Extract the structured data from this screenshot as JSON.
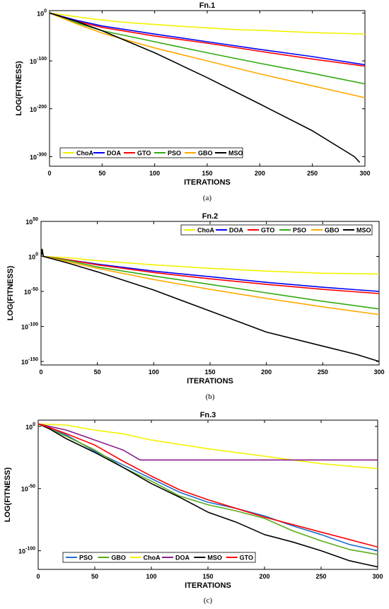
{
  "chart_data": [
    {
      "type": "line",
      "title": "Fn.1",
      "xlabel": "ITERATIONS",
      "ylabel": "LOG(FITNESS)",
      "caption": "(a)",
      "xlim": [
        0,
        300
      ],
      "ylim": [
        -320,
        5
      ],
      "y_scale": "log10",
      "xticks": [
        0,
        50,
        100,
        150,
        200,
        250,
        300
      ],
      "yticks": [
        {
          "value": 0,
          "base": "10",
          "exp": "0"
        },
        {
          "value": -100,
          "base": "10",
          "exp": "-100"
        },
        {
          "value": -200,
          "base": "10",
          "exp": "-200"
        },
        {
          "value": -300,
          "base": "10",
          "exp": "-300"
        }
      ],
      "legend_position": "bottom-left",
      "legend_order": [
        "ChoA",
        "DOA",
        "GTO",
        "PSO",
        "GBO",
        "MSO"
      ],
      "series": [
        {
          "name": "ChoA",
          "color": "#f2f200",
          "x": [
            0,
            10,
            20,
            30,
            40,
            60,
            80,
            100,
            120,
            150,
            180,
            200,
            250,
            300
          ],
          "y": [
            0,
            -3,
            -6,
            -9,
            -12,
            -17,
            -21,
            -24,
            -27,
            -31,
            -35,
            -36,
            -41,
            -44
          ]
        },
        {
          "name": "DOA",
          "color": "#0000ff",
          "x": [
            0,
            25,
            50,
            100,
            150,
            200,
            250,
            300
          ],
          "y": [
            0,
            -15,
            -27,
            -44,
            -60,
            -76,
            -91,
            -108
          ]
        },
        {
          "name": "GTO",
          "color": "#ff0000",
          "x": [
            0,
            25,
            50,
            100,
            150,
            200,
            250,
            300
          ],
          "y": [
            0,
            -17,
            -30,
            -48,
            -63,
            -80,
            -96,
            -111
          ]
        },
        {
          "name": "PSO",
          "color": "#33aa11",
          "x": [
            0,
            25,
            50,
            100,
            150,
            200,
            250,
            300
          ],
          "y": [
            0,
            -20,
            -37,
            -60,
            -83,
            -105,
            -126,
            -148
          ]
        },
        {
          "name": "GBO",
          "color": "#ffaa00",
          "x": [
            0,
            25,
            50,
            100,
            150,
            200,
            250,
            300
          ],
          "y": [
            0,
            -22,
            -42,
            -73,
            -100,
            -127,
            -152,
            -177
          ]
        },
        {
          "name": "MSO",
          "color": "#000000",
          "x": [
            0,
            25,
            50,
            100,
            150,
            200,
            250,
            290,
            295
          ],
          "y": [
            0,
            -17,
            -37,
            -83,
            -135,
            -190,
            -246,
            -300,
            -312
          ]
        }
      ]
    },
    {
      "type": "line",
      "title": "Fn.2",
      "xlabel": "ITERATIONS",
      "ylabel": "LOG(FITNESS)",
      "caption": "(b)",
      "xlim": [
        0,
        300
      ],
      "ylim": [
        -155,
        50
      ],
      "y_scale": "log10",
      "xticks": [
        0,
        50,
        100,
        150,
        200,
        250,
        300
      ],
      "yticks": [
        {
          "value": 50,
          "base": "10",
          "exp": "50"
        },
        {
          "value": 0,
          "base": "10",
          "exp": "0"
        },
        {
          "value": -50,
          "base": "10",
          "exp": "-50"
        },
        {
          "value": -100,
          "base": "10",
          "exp": "-100"
        },
        {
          "value": -150,
          "base": "10",
          "exp": "-150"
        }
      ],
      "legend_position": "top-right",
      "legend_order": [
        "ChoA",
        "DOA",
        "GTO",
        "PSO",
        "GBO",
        "MSO"
      ],
      "series": [
        {
          "name": "ChoA",
          "color": "#f2f200",
          "x": [
            0,
            1,
            2,
            25,
            50,
            100,
            150,
            200,
            250,
            300
          ],
          "y": [
            0,
            10,
            0,
            -2,
            -6,
            -12,
            -17,
            -21,
            -24,
            -25
          ]
        },
        {
          "name": "DOA",
          "color": "#0000ff",
          "x": [
            0,
            1,
            2,
            25,
            50,
            100,
            150,
            200,
            250,
            300
          ],
          "y": [
            0,
            10,
            0,
            -5,
            -11,
            -21,
            -29,
            -37,
            -44,
            -50
          ]
        },
        {
          "name": "GTO",
          "color": "#ff0000",
          "x": [
            0,
            1,
            2,
            25,
            50,
            100,
            150,
            200,
            250,
            300
          ],
          "y": [
            0,
            10,
            0,
            -5,
            -12,
            -23,
            -32,
            -40,
            -47,
            -53
          ]
        },
        {
          "name": "PSO",
          "color": "#33aa11",
          "x": [
            0,
            1,
            2,
            25,
            50,
            100,
            150,
            200,
            250,
            300
          ],
          "y": [
            0,
            10,
            0,
            -6,
            -15,
            -28,
            -40,
            -52,
            -64,
            -75
          ]
        },
        {
          "name": "GBO",
          "color": "#ffaa00",
          "x": [
            0,
            1,
            2,
            25,
            50,
            100,
            150,
            200,
            250,
            300
          ],
          "y": [
            0,
            10,
            0,
            -8,
            -17,
            -33,
            -47,
            -60,
            -72,
            -83
          ]
        },
        {
          "name": "MSO",
          "color": "#000000",
          "x": [
            0,
            1,
            2,
            25,
            50,
            100,
            150,
            200,
            250,
            280,
            300
          ],
          "y": [
            0,
            10,
            0,
            -10,
            -22,
            -48,
            -78,
            -108,
            -128,
            -140,
            -150
          ]
        }
      ]
    },
    {
      "type": "line",
      "title": "Fn.3",
      "xlabel": "ITERATIONS",
      "ylabel": "LOG(FITNESS)",
      "caption": "(c)",
      "xlim": [
        0,
        300
      ],
      "ylim": [
        -115,
        5
      ],
      "y_scale": "log10",
      "xticks": [
        0,
        50,
        100,
        150,
        200,
        250,
        300
      ],
      "yticks": [
        {
          "value": 0,
          "base": "10",
          "exp": "0"
        },
        {
          "value": -50,
          "base": "10",
          "exp": "-50"
        },
        {
          "value": -100,
          "base": "10",
          "exp": "-100"
        }
      ],
      "legend_position": "bottom-left",
      "legend_order": [
        "PSO",
        "GBO",
        "ChoA",
        "DOA",
        "MSO",
        "GTO"
      ],
      "series": [
        {
          "name": "PSO",
          "color": "#1e6fd0",
          "x": [
            0,
            10,
            25,
            50,
            75,
            100,
            125,
            150,
            175,
            200,
            225,
            250,
            275,
            300
          ],
          "y": [
            2,
            -1,
            -7,
            -20,
            -31,
            -42,
            -53,
            -61,
            -66,
            -72,
            -80,
            -87,
            -95,
            -100
          ]
        },
        {
          "name": "GBO",
          "color": "#5aaa1a",
          "x": [
            0,
            10,
            25,
            50,
            75,
            100,
            125,
            150,
            175,
            200,
            225,
            250,
            275,
            300
          ],
          "y": [
            2,
            -2,
            -8,
            -19,
            -33,
            -44,
            -56,
            -63,
            -68,
            -74,
            -84,
            -92,
            -99,
            -103
          ]
        },
        {
          "name": "ChoA",
          "color": "#f2f200",
          "x": [
            0,
            25,
            50,
            75,
            100,
            150,
            175,
            200,
            225,
            250,
            275,
            300
          ],
          "y": [
            2,
            1,
            -3,
            -6,
            -11,
            -18,
            -21,
            -24,
            -27,
            -30,
            -32,
            -34
          ]
        },
        {
          "name": "DOA",
          "color": "#8a1f8a",
          "x": [
            0,
            25,
            50,
            75,
            90,
            300
          ],
          "y": [
            2,
            -3,
            -11,
            -19,
            -27,
            -27
          ]
        },
        {
          "name": "MSO",
          "color": "#000000",
          "x": [
            0,
            10,
            25,
            50,
            75,
            100,
            125,
            150,
            175,
            200,
            225,
            250,
            275,
            290,
            300
          ],
          "y": [
            2,
            -2,
            -10,
            -21,
            -33,
            -46,
            -57,
            -69,
            -77,
            -87,
            -93,
            -100,
            -108,
            -111,
            -113
          ]
        },
        {
          "name": "GTO",
          "color": "#ff0000",
          "x": [
            0,
            10,
            25,
            50,
            75,
            100,
            125,
            150,
            175,
            200,
            225,
            250,
            275,
            300
          ],
          "y": [
            2,
            -1,
            -6,
            -15,
            -28,
            -40,
            -51,
            -59,
            -66,
            -73,
            -79,
            -85,
            -91,
            -97
          ]
        }
      ]
    }
  ]
}
